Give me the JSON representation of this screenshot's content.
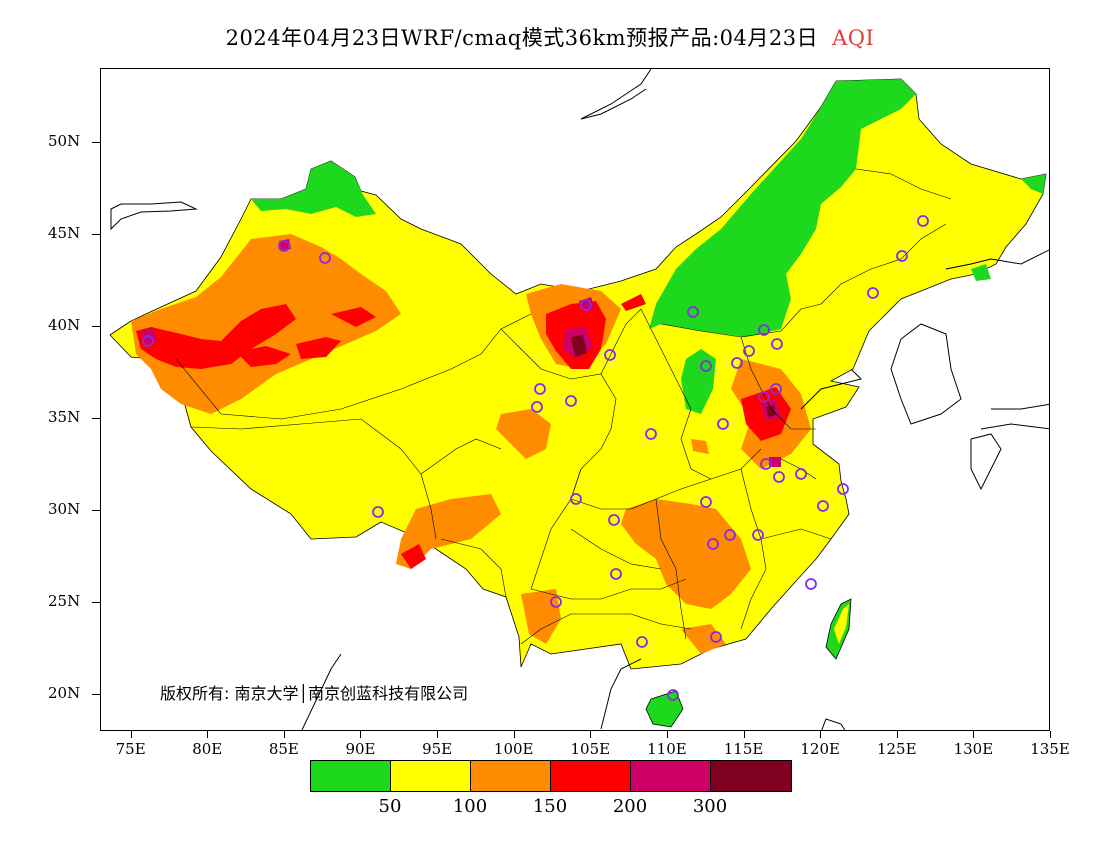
{
  "title": {
    "main": "2024年04月23日WRF/cmaq模式36km预报产品:04月23日",
    "variable": "AQI",
    "variable_color": "#e0403a"
  },
  "map": {
    "y_axis_labels": [
      "50N",
      "45N",
      "40N",
      "35N",
      "30N",
      "25N",
      "20N"
    ],
    "x_axis_labels": [
      "75E",
      "80E",
      "85E",
      "90E",
      "95E",
      "100E",
      "105E",
      "110E",
      "115E",
      "120E",
      "125E",
      "130E",
      "135E"
    ],
    "lon_range": [
      73,
      135
    ],
    "lat_range": [
      18,
      54
    ],
    "copyright": "版权所有: 南京大学│南京创蓝科技有限公司"
  },
  "legend": {
    "labels": [
      "50",
      "100",
      "150",
      "200",
      "300"
    ],
    "colors": [
      "#1ed81e",
      "#ffff00",
      "#ff8c00",
      "#ff0000",
      "#cc0066",
      "#800020"
    ]
  }
}
